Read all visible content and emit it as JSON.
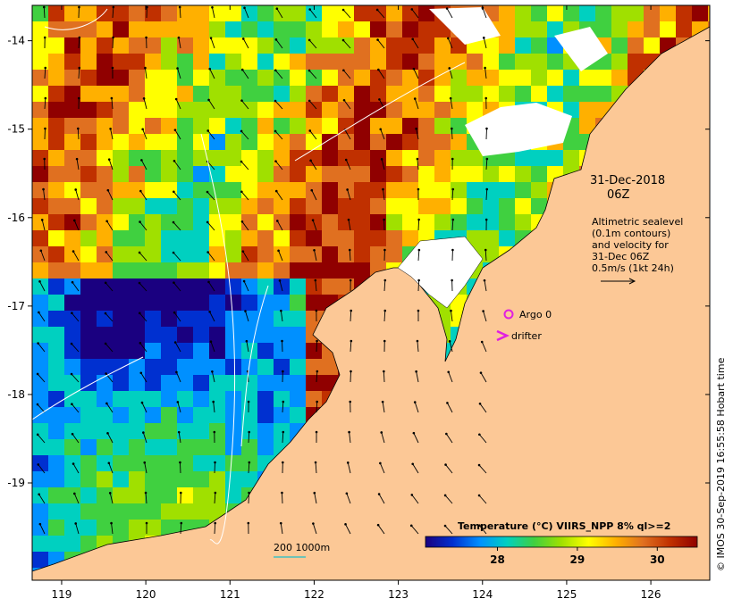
{
  "map": {
    "lon_ticks": [
      "119",
      "120",
      "121",
      "122",
      "123",
      "124",
      "125",
      "126"
    ],
    "lat_ticks": [
      "-14",
      "-15",
      "-16",
      "-17",
      "-18",
      "-19"
    ],
    "lon_range": [
      118.65,
      126.7
    ],
    "lat_range": [
      -20.1,
      -13.6
    ]
  },
  "timestamp": {
    "date": "31-Dec-2018",
    "hour": "06Z"
  },
  "sealevel_note": {
    "line1": "Altimetric sealevel",
    "line2": "(0.1m contours)",
    "line3": "and velocity for",
    "line4": "31-Dec 06Z",
    "line5": "0.5m/s (1kt 24h)"
  },
  "legend": {
    "argo_label": "Argo 0",
    "drifter_label": "drifter",
    "argo_color": "#e020e0",
    "drifter_color": "#e020e0"
  },
  "scale_note": {
    "label": "200  1000m",
    "color": "#40c0c0"
  },
  "colorbar": {
    "title": "Temperature (°C) VIIRS_NPP 8% ql>=2",
    "ticks": [
      "28",
      "29",
      "30"
    ],
    "tick_values": [
      28,
      29,
      30
    ],
    "range": [
      27.1,
      30.5
    ],
    "colors": [
      "#1a0080",
      "#0030d0",
      "#0090ff",
      "#00d0c0",
      "#40d040",
      "#a0e000",
      "#ffff00",
      "#ffb000",
      "#e07020",
      "#c03000",
      "#900000"
    ]
  },
  "land_color": "#fcc896",
  "credit": "© IMOS 30-Sep-2019 16:55:58 Hobart time"
}
